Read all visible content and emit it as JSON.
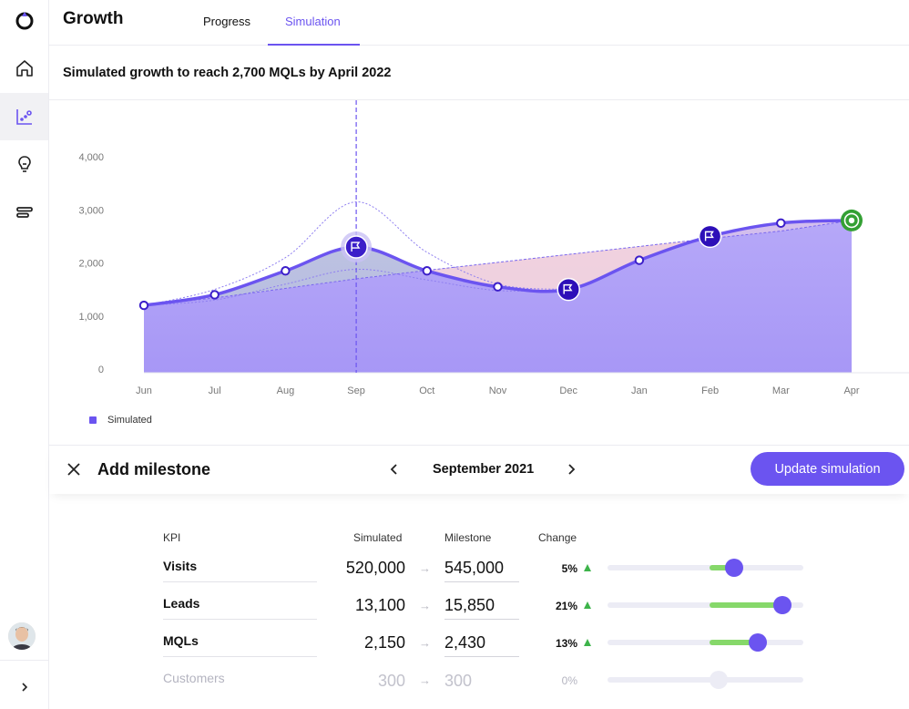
{
  "header": {
    "title": "Growth",
    "tabs": [
      {
        "label": "Progress",
        "active": false
      },
      {
        "label": "Simulation",
        "active": true
      }
    ]
  },
  "subtitle": "Simulated growth to reach 2,700 MQLs by April 2022",
  "colors": {
    "accent": "#6b54f0",
    "positive": "#3db34a",
    "milestone_fill": "#3b1ec9",
    "target": "#34a034"
  },
  "sidebar": {
    "items": [
      {
        "icon": "logo-icon"
      },
      {
        "icon": "home-icon"
      },
      {
        "icon": "growth-chart-icon",
        "active": true
      },
      {
        "icon": "lightbulb-icon"
      },
      {
        "icon": "stack-icon"
      }
    ],
    "avatar": "user-avatar",
    "expand_icon": "chevron-right-icon"
  },
  "chart_data": {
    "type": "area",
    "categories": [
      "Jun",
      "Jul",
      "Aug",
      "Sep",
      "Oct",
      "Nov",
      "Dec",
      "Jan",
      "Feb",
      "Mar",
      "Apr"
    ],
    "ylim": [
      0,
      4000
    ],
    "yticks": [
      "0",
      "1,000",
      "2,000",
      "3,000",
      "4,000"
    ],
    "series": [
      {
        "name": "Simulated",
        "values": [
          1200,
          1400,
          1850,
          2300,
          1850,
          1550,
          1500,
          2050,
          2500,
          2750,
          2800
        ]
      }
    ],
    "baseline": [
      1200,
      1340,
      1520,
      1700,
      1860,
      2010,
      2160,
      2310,
      2460,
      2600,
      2800
    ],
    "upper_band": [
      1200,
      1500,
      2100,
      3150,
      2200,
      1600,
      1500
    ],
    "lower_band": [
      1200,
      1300,
      1600,
      1880,
      1680,
      1480,
      1500
    ],
    "milestones": [
      "Sep",
      "Dec",
      "Feb"
    ],
    "selected": "Sep",
    "target": "Apr",
    "grid": false,
    "legend_position": "bottom-left"
  },
  "legend": {
    "label": "Simulated"
  },
  "milestone_bar": {
    "title": "Add milestone",
    "month": "September 2021",
    "update_button": "Update simulation"
  },
  "table": {
    "headers": {
      "kpi": "KPI",
      "simulated": "Simulated",
      "milestone": "Milestone",
      "change": "Change"
    },
    "rows": [
      {
        "kpi": "Visits",
        "simulated": "520,000",
        "milestone": "545,000",
        "change": "5%",
        "change_pct": 5,
        "up": true
      },
      {
        "kpi": "Leads",
        "simulated": "13,100",
        "milestone": "15,850",
        "change": "21%",
        "change_pct": 21,
        "up": true
      },
      {
        "kpi": "MQLs",
        "simulated": "2,150",
        "milestone": "2,430",
        "change": "13%",
        "change_pct": 13,
        "up": true
      },
      {
        "kpi": "Customers",
        "simulated": "300",
        "milestone": "300",
        "change": "0%",
        "change_pct": 0,
        "up": false
      }
    ],
    "arrow": "→"
  }
}
